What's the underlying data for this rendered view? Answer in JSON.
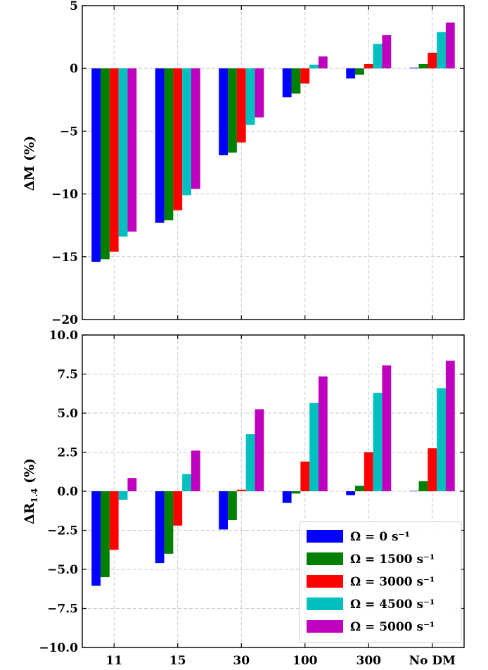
{
  "chart_data": [
    {
      "type": "bar",
      "panel": "top",
      "ylabel": "ΔM (%)",
      "ylim": [
        -20,
        5
      ],
      "yticks": [
        5,
        0,
        -5,
        -10,
        -15,
        -20
      ],
      "ytick_labels": [
        "5",
        "0",
        "−5",
        "−10",
        "−15",
        "−20"
      ],
      "categories": [
        "11",
        "15",
        "30",
        "100",
        "300",
        "No DM"
      ],
      "grid": true,
      "series": [
        {
          "name": "Ω = 0 s⁻¹",
          "color": "#0000ff",
          "values": [
            -15.4,
            -12.3,
            -6.9,
            -2.3,
            -0.8,
            0.05
          ]
        },
        {
          "name": "Ω = 1500 s⁻¹",
          "color": "#008000",
          "values": [
            -15.2,
            -12.1,
            -6.7,
            -2.0,
            -0.5,
            0.35
          ]
        },
        {
          "name": "Ω = 3000 s⁻¹",
          "color": "#ff0000",
          "values": [
            -14.6,
            -11.3,
            -5.9,
            -1.2,
            0.35,
            1.25
          ]
        },
        {
          "name": "Ω = 4500 s⁻¹",
          "color": "#00bfbf",
          "values": [
            -13.4,
            -10.1,
            -4.5,
            0.3,
            1.95,
            2.9
          ]
        },
        {
          "name": "Ω = 5000 s⁻¹",
          "color": "#bf00bf",
          "values": [
            -13.0,
            -9.6,
            -3.9,
            0.95,
            2.65,
            3.65
          ]
        }
      ]
    },
    {
      "type": "bar",
      "panel": "bottom",
      "ylabel": "ΔR1.4 (%)",
      "ylim": [
        -10,
        10
      ],
      "yticks": [
        10,
        7.5,
        5,
        2.5,
        0,
        -2.5,
        -5,
        -7.5,
        -10
      ],
      "ytick_labels": [
        "10.0",
        "7.5",
        "5.0",
        "2.5",
        "0.0",
        "−2.5",
        "−5.0",
        "−7.5",
        "−10.0"
      ],
      "categories": [
        "11",
        "15",
        "30",
        "100",
        "300",
        "No DM"
      ],
      "xtick_labels": [
        "11",
        "15",
        "30",
        "100",
        "300",
        "No DM"
      ],
      "grid": true,
      "legend_position": "lower-right",
      "series": [
        {
          "name": "Ω = 0 s⁻¹",
          "color": "#0000ff",
          "values": [
            -6.05,
            -4.6,
            -2.45,
            -0.75,
            -0.25,
            0.02
          ]
        },
        {
          "name": "Ω = 1500 s⁻¹",
          "color": "#008000",
          "values": [
            -5.5,
            -4.0,
            -1.85,
            -0.15,
            0.35,
            0.65
          ]
        },
        {
          "name": "Ω = 3000 s⁻¹",
          "color": "#ff0000",
          "values": [
            -3.75,
            -2.2,
            0.1,
            1.9,
            2.5,
            2.75
          ]
        },
        {
          "name": "Ω = 4500 s⁻¹",
          "color": "#00bfbf",
          "values": [
            -0.55,
            1.1,
            3.65,
            5.65,
            6.3,
            6.6
          ]
        },
        {
          "name": "Ω = 5000 s⁻¹",
          "color": "#bf00bf",
          "values": [
            0.85,
            2.6,
            5.25,
            7.35,
            8.05,
            8.35
          ]
        }
      ]
    }
  ],
  "legend": {
    "entries": [
      {
        "label": "Ω = 0 s⁻¹",
        "color": "#0000ff"
      },
      {
        "label": "Ω = 1500 s⁻¹",
        "color": "#008000"
      },
      {
        "label": "Ω = 3000 s⁻¹",
        "color": "#ff0000"
      },
      {
        "label": "Ω = 4500 s⁻¹",
        "color": "#00bfbf"
      },
      {
        "label": "Ω = 5000 s⁻¹",
        "color": "#bf00bf"
      }
    ]
  }
}
